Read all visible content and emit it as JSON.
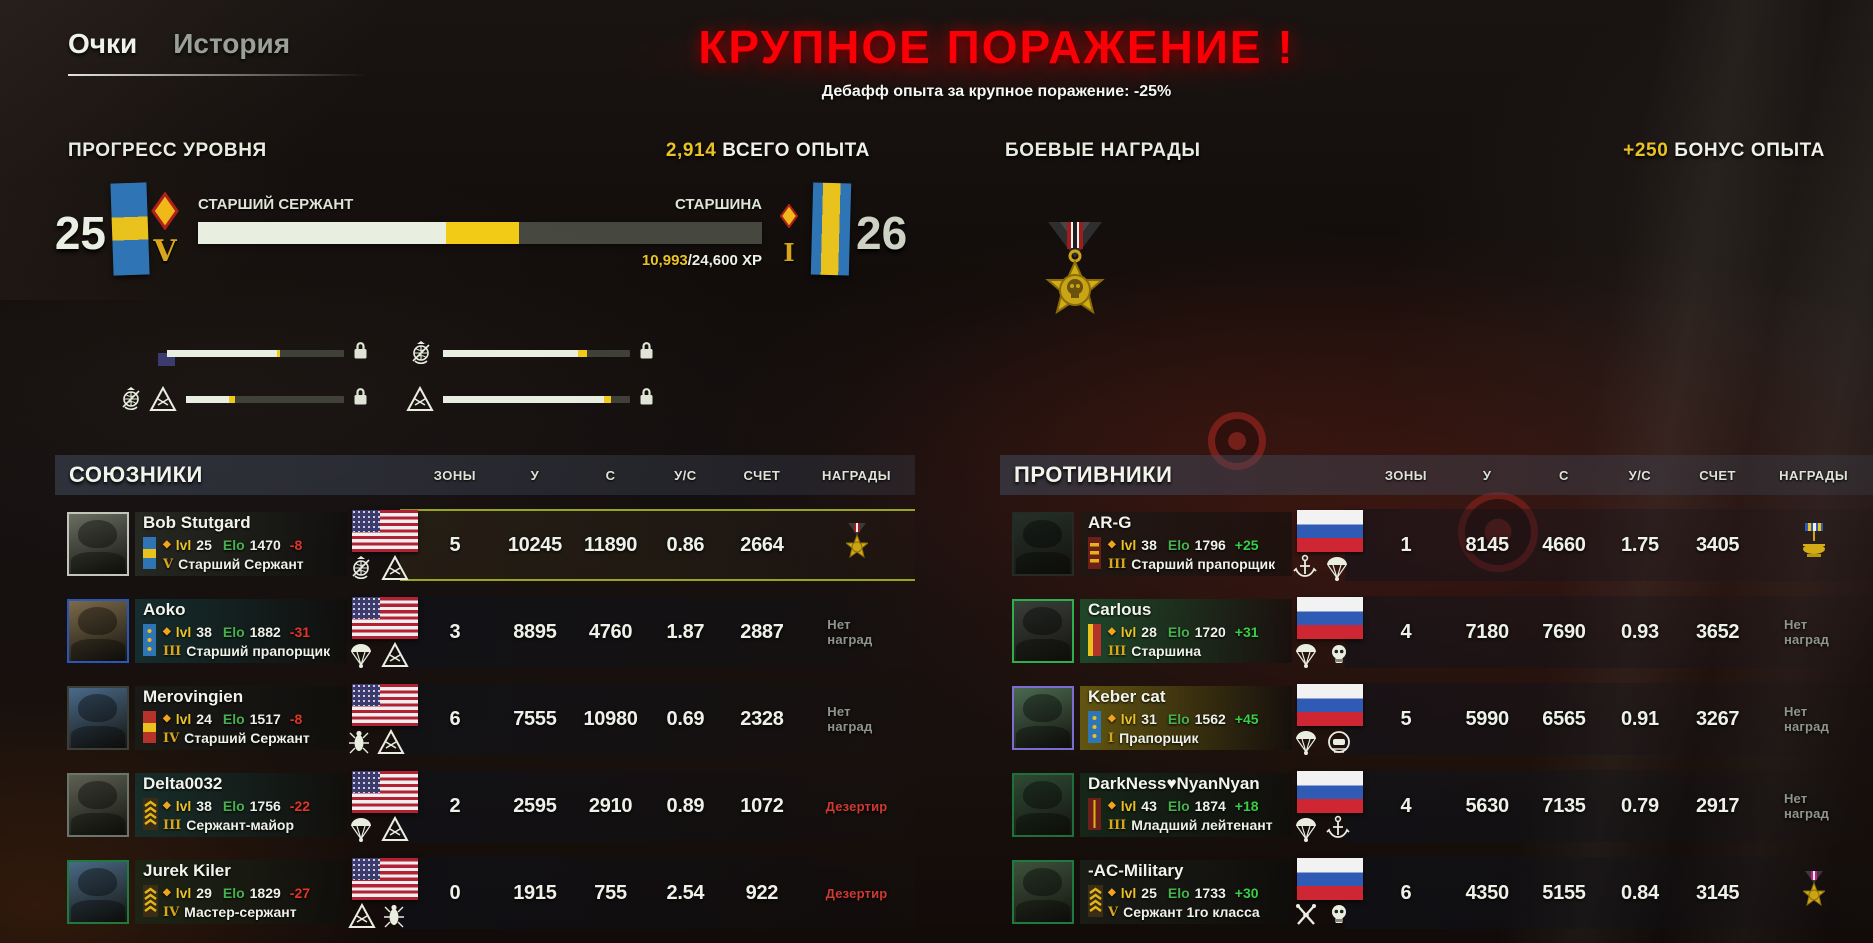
{
  "colors": {
    "accent_yellow": "#e9c226",
    "green": "#46b24e",
    "neg_red": "#e23428",
    "title_red": "#fa0006",
    "bar_cream": "#e9efe0",
    "bar_yellow": "#f2cb16",
    "highlight_olive": "#97a51f"
  },
  "tabs": {
    "scores": "Очки",
    "history": "История"
  },
  "result": {
    "title": "КРУПНОЕ ПОРАЖЕНИЕ !",
    "subtitle": "Дебафф опыта за крупное поражение: -25%"
  },
  "level_progress": {
    "section_title": "ПРОГРЕСС УРОВНЯ",
    "total_xp_value": "2,914",
    "total_xp_label": " ВСЕГО ОПЫТА",
    "current_level": "25",
    "next_level": "26",
    "current_rank": "СТАРШИЙ СЕРЖАНТ",
    "next_rank": "СТАРШИНА",
    "current_numeral": "V",
    "next_numeral": "I",
    "xp_current": "10,993",
    "xp_rest": "/24,600 XP",
    "bar": {
      "white_pct": 44,
      "yellow_pct": 13
    },
    "mini_bars": [
      {
        "icons": [
          "us-flag"
        ],
        "white_pct": 62,
        "yellow_pct": 2,
        "locked": true
      },
      {
        "icons": [
          "ega"
        ],
        "white_pct": 72,
        "yellow_pct": 5,
        "locked": true
      },
      {
        "icons": [
          "ega",
          "tri"
        ],
        "white_pct": 27,
        "yellow_pct": 4,
        "locked": true
      },
      {
        "icons": [
          "tri"
        ],
        "white_pct": 86,
        "yellow_pct": 4,
        "locked": true
      }
    ]
  },
  "awards_panel": {
    "section_title": "БОЕВЫЕ НАГРАДЫ",
    "bonus_value": "+250",
    "bonus_label": " БОНУС ОПЫТА",
    "medal": "skull-star-medal"
  },
  "labels": {
    "lvl": "lvl",
    "elo": "Elo"
  },
  "table_headers": {
    "zones": "ЗОНЫ",
    "kills": "У",
    "deaths": "С",
    "kd": "У/С",
    "score": "СЧЕТ",
    "awards": "НАГРАДЫ"
  },
  "award_labels": {
    "none": "Нет наград",
    "deserter": "Дезертир"
  },
  "allies": {
    "title": "СОЮЗНИКИ",
    "players": [
      {
        "name": "Bob Stutgard",
        "lvl": "25",
        "elo": "1470",
        "delta": "-8",
        "delta_sign": "neg",
        "numeral": "V",
        "rank": "Старший Сержант",
        "flag": "us",
        "badges": [
          "ega",
          "tri"
        ],
        "insignia": "band-blue",
        "zones": "5",
        "kills": "10245",
        "deaths": "11890",
        "kd": "0.86",
        "score": "2664",
        "award": "star-red",
        "highlight": true,
        "avatar_border": "#c2c6ba",
        "avatar_tint": "#6a6e62",
        "plate_tint": "rgba(42,45,38,.82)"
      },
      {
        "name": "Aoko",
        "lvl": "38",
        "elo": "1882",
        "delta": "-31",
        "delta_sign": "neg",
        "numeral": "III",
        "rank": "Старший прапорщик",
        "flag": "us",
        "badges": [
          "para",
          "tri"
        ],
        "insignia": "dots-blue",
        "zones": "3",
        "kills": "8895",
        "deaths": "4760",
        "kd": "1.87",
        "score": "2887",
        "award": "none",
        "highlight": false,
        "avatar_border": "#2a56b8",
        "avatar_tint": "#7c6a4a",
        "plate_tint": "rgba(22,52,54,.80)"
      },
      {
        "name": "Merovingien",
        "lvl": "24",
        "elo": "1517",
        "delta": "-8",
        "delta_sign": "neg",
        "numeral": "IV",
        "rank": "Старший Сержант",
        "flag": "us",
        "badges": [
          "bug",
          "tri"
        ],
        "insignia": "band-red",
        "zones": "6",
        "kills": "7555",
        "deaths": "10980",
        "kd": "0.69",
        "score": "2328",
        "award": "none",
        "highlight": false,
        "avatar_border": "#3a4038",
        "avatar_tint": "#4a6a8a",
        "plate_tint": "rgba(26,28,26,.80)"
      },
      {
        "name": "Delta0032",
        "lvl": "38",
        "elo": "1756",
        "delta": "-22",
        "delta_sign": "neg",
        "numeral": "III",
        "rank": "Сержант-майор",
        "flag": "us",
        "badges": [
          "para",
          "tri"
        ],
        "insignia": "chevrons",
        "zones": "2",
        "kills": "2595",
        "deaths": "2910",
        "kd": "0.89",
        "score": "1072",
        "award": "deserter",
        "highlight": false,
        "avatar_border": "#69776a",
        "avatar_tint": "#5d6152",
        "plate_tint": "rgba(20,52,50,.80)"
      },
      {
        "name": "Jurek Kiler",
        "lvl": "29",
        "elo": "1829",
        "delta": "-27",
        "delta_sign": "neg",
        "numeral": "IV",
        "rank": "Мастер-сержант",
        "flag": "us",
        "badges": [
          "tri",
          "bug"
        ],
        "insignia": "chevrons",
        "zones": "0",
        "kills": "1915",
        "deaths": "755",
        "kd": "2.54",
        "score": "922",
        "award": "deserter",
        "highlight": false,
        "avatar_border": "#1f7a40",
        "avatar_tint": "#4a6a86",
        "plate_tint": "rgba(26,40,24,.80)"
      }
    ]
  },
  "enemies": {
    "title": "ПРОТИВНИКИ",
    "players": [
      {
        "name": "AR-G",
        "lvl": "38",
        "elo": "1796",
        "delta": "+25",
        "delta_sign": "pos",
        "numeral": "III",
        "rank": "Старший прапорщик",
        "flag": "ru",
        "badges": [
          "anchor",
          "para"
        ],
        "insignia": "bars-red",
        "zones": "1",
        "kills": "8145",
        "deaths": "4660",
        "kd": "1.75",
        "score": "3405",
        "award": "heli",
        "highlight": false,
        "avatar_border": "#242b24",
        "avatar_tint": "#243028",
        "plate_tint": "rgba(30,24,20,.80)"
      },
      {
        "name": "Carlous",
        "lvl": "28",
        "elo": "1720",
        "delta": "+31",
        "delta_sign": "pos",
        "numeral": "III",
        "rank": "Старшина",
        "flag": "ru",
        "badges": [
          "para",
          "skull"
        ],
        "insignia": "col-red",
        "zones": "4",
        "kills": "7180",
        "deaths": "7690",
        "kd": "0.93",
        "score": "3652",
        "award": "none",
        "highlight": false,
        "avatar_border": "#2fae4e",
        "avatar_tint": "#3a3f3a",
        "plate_tint": "rgba(30,84,48,.80)"
      },
      {
        "name": "Keber cat",
        "lvl": "31",
        "elo": "1562",
        "delta": "+45",
        "delta_sign": "pos",
        "numeral": "I",
        "rank": "Прапорщик",
        "flag": "ru",
        "badges": [
          "para",
          "emblem"
        ],
        "insignia": "dots-blue",
        "zones": "5",
        "kills": "5990",
        "deaths": "6565",
        "kd": "0.91",
        "score": "3267",
        "award": "none",
        "highlight": false,
        "avatar_border": "#7a6fd0",
        "avatar_tint": "#4a6a50",
        "plate_tint": "rgba(116,102,18,.80)"
      },
      {
        "name": "DarkNess♥NyanNyan",
        "lvl": "43",
        "elo": "1874",
        "delta": "+18",
        "delta_sign": "pos",
        "numeral": "III",
        "rank": "Младший лейтенант",
        "flag": "ru",
        "badges": [
          "para",
          "anchor"
        ],
        "insignia": "line-maroon",
        "zones": "4",
        "kills": "5630",
        "deaths": "7135",
        "kd": "0.79",
        "score": "2917",
        "award": "none",
        "highlight": false,
        "avatar_border": "#1f6f3a",
        "avatar_tint": "#2e4a34",
        "plate_tint": "rgba(22,44,28,.80)"
      },
      {
        "name": "-AC-Military",
        "lvl": "25",
        "elo": "1733",
        "delta": "+30",
        "delta_sign": "pos",
        "numeral": "V",
        "rank": "Сержант 1го класса",
        "flag": "ru",
        "badges": [
          "cross",
          "skull"
        ],
        "insignia": "chevrons",
        "zones": "6",
        "kills": "4350",
        "deaths": "5155",
        "kd": "0.84",
        "score": "3145",
        "award": "star-magenta",
        "highlight": false,
        "avatar_border": "#1f7a40",
        "avatar_tint": "#3e523c",
        "plate_tint": "rgba(28,32,26,.80)"
      }
    ]
  }
}
